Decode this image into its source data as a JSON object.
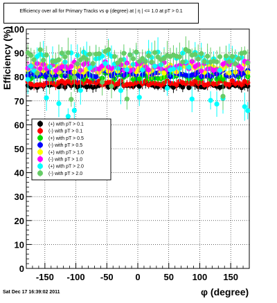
{
  "title": "Efficiency over all for Primary Tracks vs φ (degree) at | η | <= 1.0 at pT > 0.1",
  "footer": "Sat Dec 17 16:39:02 2011",
  "chart_data": {
    "type": "scatter",
    "xlabel": "φ (degree)",
    "ylabel": "Efficiency (%)",
    "xlim": [
      -180,
      180
    ],
    "ylim": [
      0,
      100
    ],
    "xticks": [
      -150,
      -100,
      -50,
      0,
      50,
      100,
      150
    ],
    "yticks": [
      0,
      10,
      20,
      30,
      40,
      50,
      60,
      70,
      80,
      90,
      100
    ],
    "grid": true,
    "legend_position": "left, middle",
    "series": [
      {
        "name": "(+) with pT > 0.1",
        "color": "#000000",
        "level": 76.5,
        "spread": 1.0,
        "err": 1.5
      },
      {
        "name": "(-) with pT > 0.1",
        "color": "#ff0000",
        "level": 77.5,
        "spread": 1.0,
        "err": 1.5
      },
      {
        "name": "(+) with pT > 0.5",
        "color": "#00dd00",
        "level": 80.5,
        "spread": 1.5,
        "err": 2.0
      },
      {
        "name": "(-) with pT > 0.5",
        "color": "#0000ff",
        "level": 81.5,
        "spread": 1.5,
        "err": 2.0
      },
      {
        "name": "(+) with pT > 1.0",
        "color": "#ffff00",
        "level": 83.5,
        "spread": 2.0,
        "err": 2.5
      },
      {
        "name": "(-) with pT > 1.0",
        "color": "#ff00ff",
        "level": 84.5,
        "spread": 2.0,
        "err": 2.5
      },
      {
        "name": "(+) with pT > 2.0",
        "color": "#00ffff",
        "level": 86.5,
        "spread": 4.0,
        "err": 4.0
      },
      {
        "name": "(-) with pT > 2.0",
        "color": "#66cc66",
        "level": 88.5,
        "spread": 3.0,
        "err": 4.0
      }
    ]
  }
}
